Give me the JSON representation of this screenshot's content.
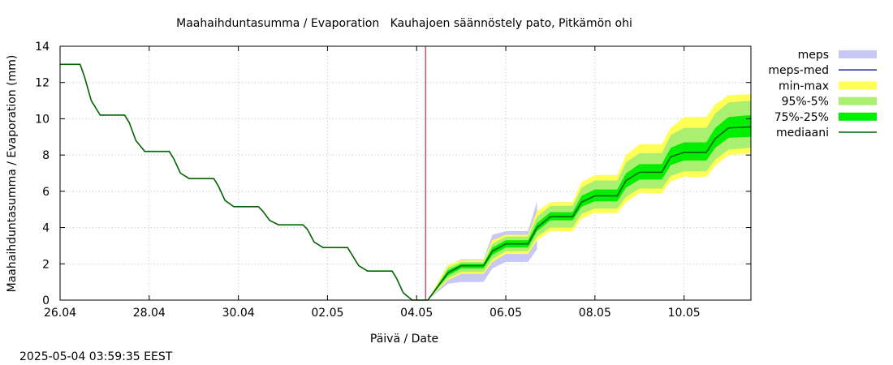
{
  "chart_data": {
    "type": "line",
    "title": "Maahaihduntasumma / Evaporation   Kauhajoen säännöstely pato, Pitkämön ohi",
    "xlabel": "Päivä / Date",
    "ylabel": "Maahaihduntasumma / Evaporation (mm)",
    "timestamp": "2025-05-04 03:59:35 EEST",
    "x_unit": "days since 26.04",
    "xlim": [
      0,
      15.5
    ],
    "ylim": [
      0,
      14
    ],
    "x_ticks": [
      {
        "x": 0,
        "label": "26.04"
      },
      {
        "x": 2,
        "label": "28.04"
      },
      {
        "x": 4,
        "label": "30.04"
      },
      {
        "x": 6,
        "label": "02.05"
      },
      {
        "x": 8,
        "label": "04.05"
      },
      {
        "x": 10,
        "label": "06.05"
      },
      {
        "x": 12,
        "label": "08.05"
      },
      {
        "x": 14,
        "label": "10.05"
      }
    ],
    "y_ticks": [
      0,
      2,
      4,
      6,
      8,
      10,
      12,
      14
    ],
    "grid": true,
    "legend_position": "right",
    "now_marker_x": 8.2,
    "legend": [
      {
        "key": "meps",
        "label": "meps",
        "color": "#c8c8f5",
        "kind": "band"
      },
      {
        "key": "meps_med",
        "label": "meps-med",
        "color": "#3030b0",
        "kind": "line"
      },
      {
        "key": "minmax",
        "label": "min-max",
        "color": "#ffff55",
        "kind": "band"
      },
      {
        "key": "p95_5",
        "label": "95%-5%",
        "color": "#aaf070",
        "kind": "band"
      },
      {
        "key": "p75_25",
        "label": "75%-25%",
        "color": "#00ee00",
        "kind": "band"
      },
      {
        "key": "mediaani",
        "label": "mediaani",
        "color": "#006400",
        "kind": "line"
      }
    ],
    "observed": {
      "x": [
        0,
        0.45,
        0.55,
        0.7,
        0.9,
        1.45,
        1.55,
        1.7,
        1.9,
        2.45,
        2.55,
        2.7,
        2.9,
        3.45,
        3.55,
        3.7,
        3.9,
        4.45,
        4.55,
        4.7,
        4.9,
        5.45,
        5.55,
        5.7,
        5.9,
        6.45,
        6.55,
        6.7,
        6.9,
        7.45,
        7.55,
        7.7,
        7.9,
        8.25
      ],
      "y": [
        13.0,
        13.0,
        12.3,
        11.0,
        10.2,
        10.2,
        9.8,
        8.8,
        8.2,
        8.2,
        7.8,
        7.0,
        6.7,
        6.7,
        6.3,
        5.5,
        5.15,
        5.15,
        4.9,
        4.4,
        4.15,
        4.15,
        3.9,
        3.2,
        2.9,
        2.9,
        2.5,
        1.9,
        1.6,
        1.6,
        1.2,
        0.4,
        0.0,
        0.0
      ]
    },
    "forecast_x": [
      8.25,
      8.7,
      9.0,
      9.5,
      9.7,
      10.0,
      10.5,
      10.7,
      11.0,
      11.5,
      11.7,
      12.0,
      12.5,
      12.7,
      13.0,
      13.5,
      13.7,
      14.0,
      14.5,
      14.7,
      15.0,
      15.5
    ],
    "series": [
      {
        "name": "median",
        "values": [
          0.0,
          1.5,
          1.9,
          1.9,
          2.7,
          3.1,
          3.1,
          4.0,
          4.6,
          4.6,
          5.4,
          5.75,
          5.75,
          6.6,
          7.05,
          7.05,
          7.9,
          8.15,
          8.15,
          8.9,
          9.5,
          9.55
        ]
      },
      {
        "name": "p75",
        "values": [
          0.0,
          1.65,
          2.0,
          2.0,
          2.9,
          3.3,
          3.3,
          4.25,
          4.85,
          4.85,
          5.75,
          6.1,
          6.1,
          7.0,
          7.5,
          7.5,
          8.4,
          8.7,
          8.7,
          9.5,
          10.1,
          10.2
        ]
      },
      {
        "name": "p25",
        "values": [
          0.0,
          1.35,
          1.75,
          1.75,
          2.5,
          2.9,
          2.9,
          3.8,
          4.4,
          4.4,
          5.15,
          5.45,
          5.45,
          6.2,
          6.65,
          6.65,
          7.45,
          7.7,
          7.7,
          8.4,
          8.95,
          9.0
        ]
      },
      {
        "name": "p95",
        "values": [
          0.0,
          1.8,
          2.1,
          2.1,
          3.1,
          3.5,
          3.5,
          4.6,
          5.2,
          5.2,
          6.2,
          6.6,
          6.6,
          7.6,
          8.1,
          8.1,
          9.1,
          9.5,
          9.5,
          10.3,
          10.9,
          11.0
        ]
      },
      {
        "name": "p5",
        "values": [
          0.0,
          1.2,
          1.55,
          1.55,
          2.25,
          2.7,
          2.7,
          3.5,
          4.0,
          4.0,
          4.75,
          5.05,
          5.05,
          5.7,
          6.15,
          6.15,
          6.85,
          7.1,
          7.1,
          7.75,
          8.3,
          8.4
        ]
      },
      {
        "name": "max",
        "values": [
          0.0,
          1.95,
          2.2,
          2.2,
          3.3,
          3.6,
          3.6,
          4.9,
          5.4,
          5.4,
          6.5,
          6.9,
          6.9,
          8.0,
          8.6,
          8.6,
          9.5,
          10.1,
          10.1,
          10.8,
          11.3,
          11.35
        ]
      },
      {
        "name": "min",
        "values": [
          0.0,
          1.1,
          1.45,
          1.45,
          2.1,
          2.55,
          2.55,
          3.3,
          3.8,
          3.8,
          4.5,
          4.8,
          4.8,
          5.4,
          5.9,
          5.9,
          6.55,
          6.8,
          6.8,
          7.4,
          8.0,
          8.1
        ]
      },
      {
        "name": "meps_upper",
        "values": [
          0.0,
          1.9,
          2.25,
          2.25,
          3.6,
          3.8,
          3.8,
          5.45,
          null,
          null,
          null,
          null,
          null,
          null,
          null,
          null,
          null,
          null,
          null,
          null,
          null,
          null
        ]
      },
      {
        "name": "meps_lower",
        "values": [
          0.0,
          0.9,
          1.0,
          1.0,
          1.75,
          2.1,
          2.1,
          2.8,
          null,
          null,
          null,
          null,
          null,
          null,
          null,
          null,
          null,
          null,
          null,
          null,
          null,
          null
        ]
      }
    ]
  }
}
